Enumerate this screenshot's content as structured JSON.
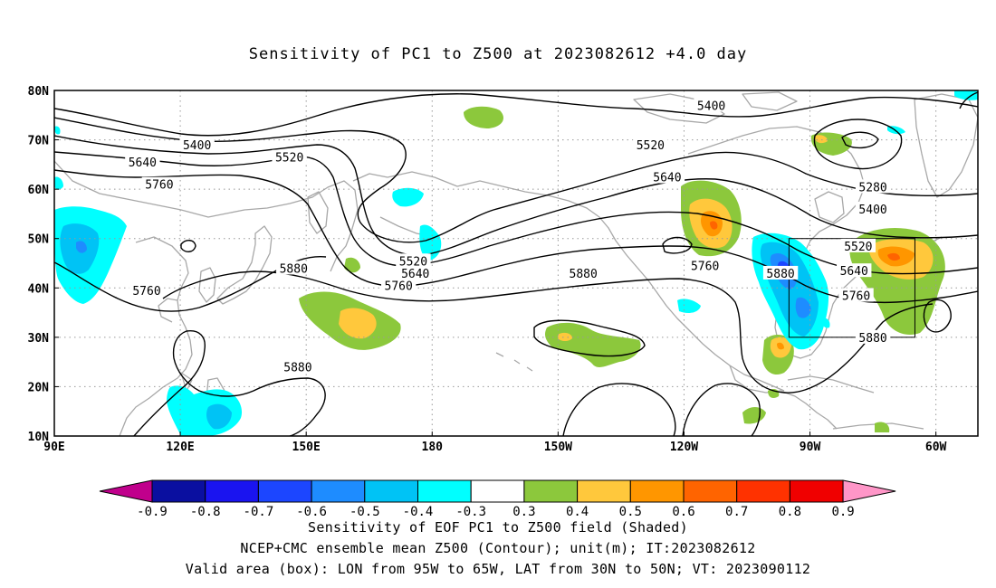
{
  "title": "Sensitivity of PC1 to Z500 at 2023082612 +4.0 day",
  "lat_labels": [
    "80N",
    "70N",
    "60N",
    "50N",
    "40N",
    "30N",
    "20N",
    "10N"
  ],
  "lon_labels": [
    "90E",
    "120E",
    "150E",
    "180",
    "150W",
    "120W",
    "90W",
    "60W"
  ],
  "contour_labels": [
    {
      "text": "5400",
      "lon": -113.5,
      "lat": 77
    },
    {
      "text": "5400",
      "lon": 124,
      "lat": 69
    },
    {
      "text": "5520",
      "lon": 146,
      "lat": 66.5
    },
    {
      "text": "5520",
      "lon": -128,
      "lat": 69
    },
    {
      "text": "5640",
      "lon": 111,
      "lat": 65.5
    },
    {
      "text": "5640",
      "lon": -124,
      "lat": 62.5
    },
    {
      "text": "5760",
      "lon": 115,
      "lat": 61
    },
    {
      "text": "5280",
      "lon": -75,
      "lat": 60.5
    },
    {
      "text": "5400",
      "lon": -75,
      "lat": 56
    },
    {
      "text": "5520",
      "lon": -78.5,
      "lat": 48.5
    },
    {
      "text": "5520",
      "lon": 175.5,
      "lat": 45.5
    },
    {
      "text": "5640",
      "lon": -79.5,
      "lat": 43.5
    },
    {
      "text": "5640",
      "lon": 176,
      "lat": 43
    },
    {
      "text": "5760",
      "lon": -115,
      "lat": 44.5
    },
    {
      "text": "5880",
      "lon": -97,
      "lat": 43
    },
    {
      "text": "5880",
      "lon": -144,
      "lat": 43
    },
    {
      "text": "5880",
      "lon": 147,
      "lat": 44
    },
    {
      "text": "5760",
      "lon": -79,
      "lat": 38.5
    },
    {
      "text": "5760",
      "lon": 112,
      "lat": 39.5
    },
    {
      "text": "5760",
      "lon": 172,
      "lat": 40.5
    },
    {
      "text": "5880",
      "lon": -75,
      "lat": 30
    },
    {
      "text": "5880",
      "lon": 148,
      "lat": 24
    }
  ],
  "colorbar": {
    "ticks": [
      "-0.9",
      "-0.8",
      "-0.7",
      "-0.6",
      "-0.5",
      "-0.4",
      "-0.3",
      "0.3",
      "0.4",
      "0.5",
      "0.6",
      "0.7",
      "0.8",
      "0.9"
    ],
    "colors": [
      "#c0008c",
      "#0a0fa0",
      "#1a14f0",
      "#1c46ff",
      "#1e8cff",
      "#00c3f5",
      "#00ffff",
      "#ffffff",
      "#8cc83c",
      "#ffc83c",
      "#ff9600",
      "#ff6400",
      "#ff3200",
      "#f00000",
      "#ff96c8"
    ]
  },
  "valid_box": {
    "lon_min": -95,
    "lon_max": -65,
    "lat_min": 30,
    "lat_max": 50
  },
  "captions": [
    "Sensitivity of EOF PC1 to Z500 field (Shaded)",
    "NCEP+CMC ensemble mean Z500 (Contour); unit(m); IT:2023082612",
    "Valid area (box): LON from 95W to 65W, LAT from 30N to 50N; VT: 2023090112"
  ]
}
